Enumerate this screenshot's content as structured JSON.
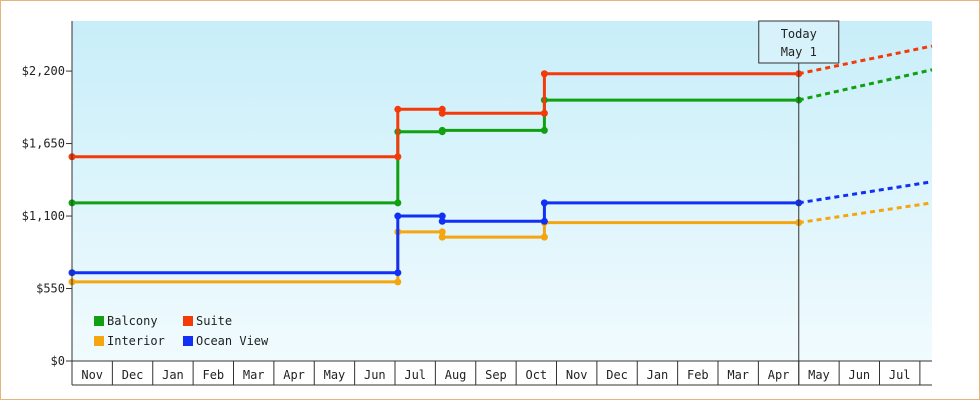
{
  "chart_data": {
    "type": "line",
    "step": true,
    "y_axis": {
      "ticks": [
        0,
        550,
        1100,
        1650,
        2200
      ],
      "tick_labels": [
        "$0",
        "$550",
        "$1,100",
        "$1,650",
        "$2,200"
      ],
      "ylim": [
        0,
        2580
      ]
    },
    "x_axis": {
      "months": [
        "Nov",
        "Dec",
        "Jan",
        "Feb",
        "Mar",
        "Apr",
        "May",
        "Jun",
        "Jul",
        "Aug",
        "Sep",
        "Oct",
        "Nov",
        "Dec",
        "Jan",
        "Feb",
        "Mar",
        "Apr",
        "May",
        "Jun",
        "Jul"
      ],
      "xlim": [
        0,
        21.3
      ]
    },
    "today_marker": {
      "line1": "Today",
      "line2": "May 1",
      "x": 18.0
    },
    "legend": {
      "placement": "bottom-left",
      "items": [
        {
          "label": "Balcony",
          "series": 0
        },
        {
          "label": "Suite",
          "series": 1
        },
        {
          "label": "Interior",
          "series": 2
        },
        {
          "label": "Ocean View",
          "series": 3
        }
      ]
    },
    "series": [
      {
        "name": "Balcony",
        "color": "#11a011",
        "points": [
          [
            0,
            1200
          ],
          [
            8.07,
            1200
          ],
          [
            8.07,
            1740
          ],
          [
            9.17,
            1740
          ],
          [
            9.17,
            1750
          ],
          [
            11.7,
            1750
          ],
          [
            11.7,
            1980
          ],
          [
            18.0,
            1980
          ]
        ],
        "projection_end": [
          21.3,
          2210
        ]
      },
      {
        "name": "Suite",
        "color": "#f53a0a",
        "points": [
          [
            0,
            1550
          ],
          [
            8.07,
            1550
          ],
          [
            8.07,
            1910
          ],
          [
            9.17,
            1910
          ],
          [
            9.17,
            1880
          ],
          [
            11.7,
            1880
          ],
          [
            11.7,
            2180
          ],
          [
            18.0,
            2180
          ]
        ],
        "projection_end": [
          21.3,
          2390
        ]
      },
      {
        "name": "Interior",
        "color": "#f5a60f",
        "points": [
          [
            0,
            600
          ],
          [
            8.07,
            600
          ],
          [
            8.07,
            980
          ],
          [
            9.17,
            980
          ],
          [
            9.17,
            940
          ],
          [
            11.7,
            940
          ],
          [
            11.7,
            1050
          ],
          [
            18.0,
            1050
          ]
        ],
        "projection_end": [
          21.3,
          1200
        ]
      },
      {
        "name": "Ocean View",
        "color": "#1030f5",
        "points": [
          [
            0,
            670
          ],
          [
            8.07,
            670
          ],
          [
            8.07,
            1100
          ],
          [
            9.17,
            1100
          ],
          [
            9.17,
            1060
          ],
          [
            11.7,
            1060
          ],
          [
            11.7,
            1200
          ],
          [
            18.0,
            1200
          ]
        ],
        "projection_end": [
          21.3,
          1360
        ]
      }
    ]
  }
}
